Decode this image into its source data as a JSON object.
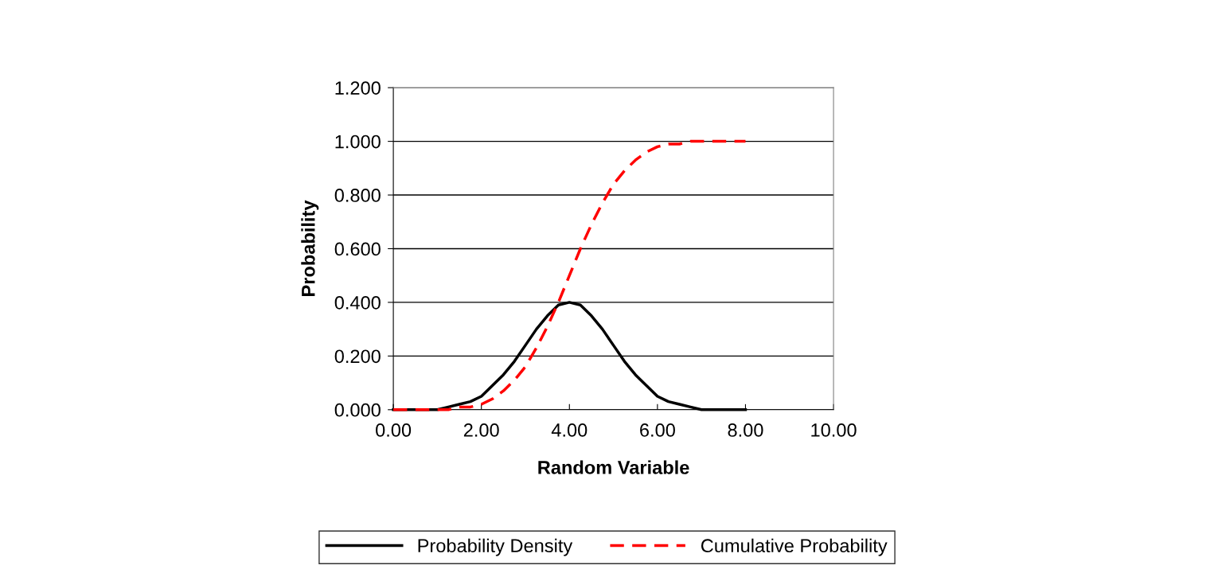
{
  "chart_data": {
    "type": "line",
    "xlabel": "Random Variable",
    "ylabel": "Probability",
    "x": [
      0,
      0.25,
      0.5,
      0.75,
      1,
      1.25,
      1.5,
      1.75,
      2,
      2.25,
      2.5,
      2.75,
      3,
      3.25,
      3.5,
      3.75,
      4,
      4.25,
      4.5,
      4.75,
      5,
      5.25,
      5.5,
      5.75,
      6,
      6.25,
      6.5,
      6.75,
      7,
      7.25,
      7.5,
      7.75,
      8
    ],
    "series": [
      {
        "name": "Probability Density",
        "color": "#000000",
        "line_style": "solid",
        "values": [
          0.0,
          0.0,
          0.0,
          0.0,
          0.0,
          0.01,
          0.02,
          0.03,
          0.05,
          0.09,
          0.13,
          0.18,
          0.24,
          0.3,
          0.35,
          0.39,
          0.4,
          0.39,
          0.35,
          0.3,
          0.24,
          0.18,
          0.13,
          0.09,
          0.05,
          0.03,
          0.02,
          0.01,
          0.0,
          0.0,
          0.0,
          0.0,
          0.0
        ]
      },
      {
        "name": "Cumulative Probability",
        "color": "#ff0000",
        "line_style": "dashed",
        "values": [
          0.0,
          0.0,
          0.0,
          0.0,
          0.0,
          0.0,
          0.01,
          0.01,
          0.02,
          0.04,
          0.07,
          0.11,
          0.16,
          0.23,
          0.31,
          0.4,
          0.5,
          0.6,
          0.69,
          0.77,
          0.84,
          0.89,
          0.93,
          0.96,
          0.98,
          0.99,
          0.99,
          1.0,
          1.0,
          1.0,
          1.0,
          1.0,
          1.0
        ]
      }
    ],
    "xlim": [
      0,
      10
    ],
    "xticks": [
      {
        "value": 0,
        "label": "0.00"
      },
      {
        "value": 2,
        "label": "2.00"
      },
      {
        "value": 4,
        "label": "4.00"
      },
      {
        "value": 6,
        "label": "6.00"
      },
      {
        "value": 8,
        "label": "8.00"
      },
      {
        "value": 10,
        "label": "10.00"
      }
    ],
    "ylim": [
      0,
      1.2
    ],
    "yticks": [
      {
        "value": 0,
        "label": "0.000"
      },
      {
        "value": 0.2,
        "label": "0.200"
      },
      {
        "value": 0.4,
        "label": "0.400"
      },
      {
        "value": 0.6,
        "label": "0.600"
      },
      {
        "value": 0.8,
        "label": "0.800"
      },
      {
        "value": 1.0,
        "label": "1.000"
      },
      {
        "value": 1.2,
        "label": "1.200"
      }
    ],
    "grid": "y",
    "legend": "bottom",
    "marker": "none"
  }
}
